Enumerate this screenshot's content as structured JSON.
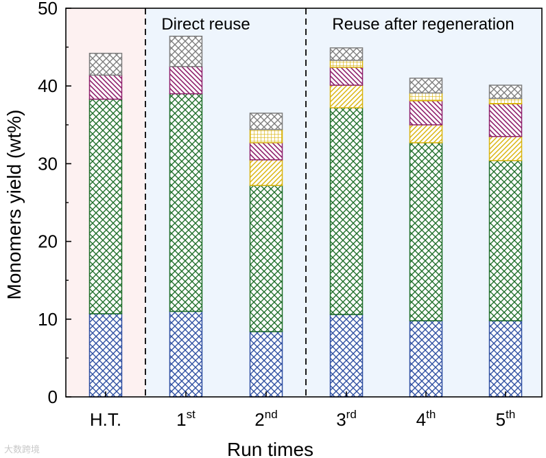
{
  "chart_data": {
    "type": "bar",
    "stacked": true,
    "categories": [
      {
        "base": "H.T.",
        "sup": ""
      },
      {
        "base": "1",
        "sup": "st"
      },
      {
        "base": "2",
        "sup": "nd"
      },
      {
        "base": "3",
        "sup": "rd"
      },
      {
        "base": "4",
        "sup": "th"
      },
      {
        "base": "5",
        "sup": "th"
      }
    ],
    "series": [
      {
        "name": "blue component",
        "color": "#2e4fa1",
        "pattern": "crosshatch",
        "values": [
          10.7,
          11.0,
          8.4,
          10.6,
          9.8,
          9.8
        ]
      },
      {
        "name": "green component",
        "color": "#1f6e2a",
        "pattern": "crosshatch",
        "values": [
          27.6,
          28.0,
          18.8,
          26.6,
          22.9,
          20.6
        ]
      },
      {
        "name": "yellow component",
        "color": "#d9b40e",
        "pattern": "diagonal",
        "values": [
          0.0,
          0.0,
          3.3,
          2.9,
          2.3,
          3.1
        ]
      },
      {
        "name": "purple component",
        "color": "#8e1f6b",
        "pattern": "diagonal",
        "values": [
          3.1,
          3.5,
          2.2,
          2.3,
          3.1,
          4.2
        ]
      },
      {
        "name": "light-yellow component",
        "color": "#d9b40e",
        "pattern": "grid",
        "values": [
          0.0,
          0.0,
          1.7,
          0.9,
          1.0,
          0.7
        ]
      },
      {
        "name": "grey component",
        "color": "#7d7d7d",
        "pattern": "crosshatch",
        "values": [
          2.8,
          3.9,
          2.1,
          1.6,
          1.9,
          1.7
        ]
      }
    ],
    "ylabel": "Monomers yield (wt%)",
    "xlabel": "Run times",
    "ylim": [
      0,
      50
    ],
    "yticks": [
      0,
      10,
      20,
      30,
      40,
      50
    ],
    "regions": [
      {
        "label": "",
        "start": 0,
        "end": 0,
        "color": "#fdf1f1"
      },
      {
        "label": "Direct reuse",
        "start": 1,
        "end": 2,
        "color": "#eef5fd"
      },
      {
        "label": "Reuse after regeneration",
        "start": 3,
        "end": 5,
        "color": "#eef5fd"
      }
    ]
  },
  "watermark": "大数跨境"
}
